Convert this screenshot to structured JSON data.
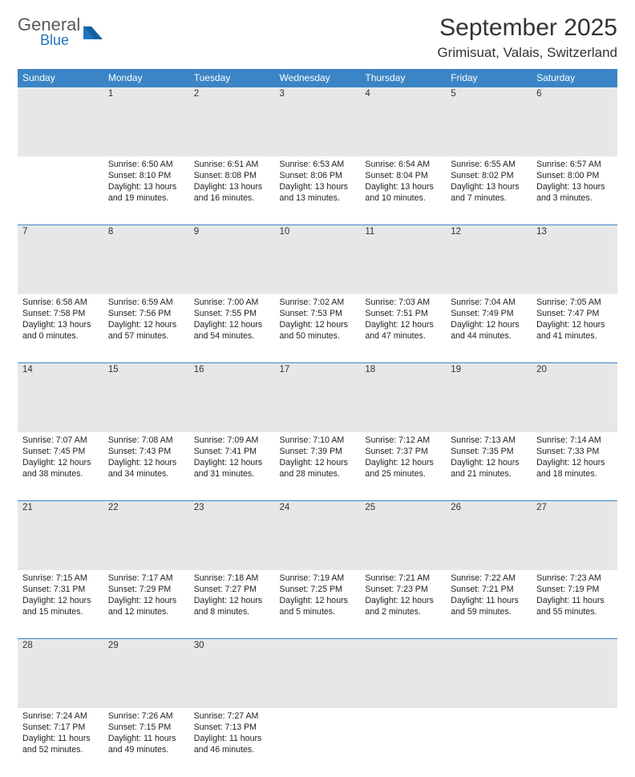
{
  "brand": {
    "general": "General",
    "blue": "Blue"
  },
  "title": "September 2025",
  "location": "Grimisuat, Valais, Switzerland",
  "colors": {
    "header_bg": "#3b85c6",
    "header_fg": "#ffffff",
    "daynum_bg": "#e7e7e7",
    "rule": "#3b85c6",
    "text": "#222222",
    "logo_gray": "#5a5a5a",
    "logo_blue": "#2176c1"
  },
  "weekdays": [
    "Sunday",
    "Monday",
    "Tuesday",
    "Wednesday",
    "Thursday",
    "Friday",
    "Saturday"
  ],
  "weeks": [
    [
      null,
      {
        "n": "1",
        "sr": "6:50 AM",
        "ss": "8:10 PM",
        "dl": "13 hours and 19 minutes."
      },
      {
        "n": "2",
        "sr": "6:51 AM",
        "ss": "8:08 PM",
        "dl": "13 hours and 16 minutes."
      },
      {
        "n": "3",
        "sr": "6:53 AM",
        "ss": "8:06 PM",
        "dl": "13 hours and 13 minutes."
      },
      {
        "n": "4",
        "sr": "6:54 AM",
        "ss": "8:04 PM",
        "dl": "13 hours and 10 minutes."
      },
      {
        "n": "5",
        "sr": "6:55 AM",
        "ss": "8:02 PM",
        "dl": "13 hours and 7 minutes."
      },
      {
        "n": "6",
        "sr": "6:57 AM",
        "ss": "8:00 PM",
        "dl": "13 hours and 3 minutes."
      }
    ],
    [
      {
        "n": "7",
        "sr": "6:58 AM",
        "ss": "7:58 PM",
        "dl": "13 hours and 0 minutes."
      },
      {
        "n": "8",
        "sr": "6:59 AM",
        "ss": "7:56 PM",
        "dl": "12 hours and 57 minutes."
      },
      {
        "n": "9",
        "sr": "7:00 AM",
        "ss": "7:55 PM",
        "dl": "12 hours and 54 minutes."
      },
      {
        "n": "10",
        "sr": "7:02 AM",
        "ss": "7:53 PM",
        "dl": "12 hours and 50 minutes."
      },
      {
        "n": "11",
        "sr": "7:03 AM",
        "ss": "7:51 PM",
        "dl": "12 hours and 47 minutes."
      },
      {
        "n": "12",
        "sr": "7:04 AM",
        "ss": "7:49 PM",
        "dl": "12 hours and 44 minutes."
      },
      {
        "n": "13",
        "sr": "7:05 AM",
        "ss": "7:47 PM",
        "dl": "12 hours and 41 minutes."
      }
    ],
    [
      {
        "n": "14",
        "sr": "7:07 AM",
        "ss": "7:45 PM",
        "dl": "12 hours and 38 minutes."
      },
      {
        "n": "15",
        "sr": "7:08 AM",
        "ss": "7:43 PM",
        "dl": "12 hours and 34 minutes."
      },
      {
        "n": "16",
        "sr": "7:09 AM",
        "ss": "7:41 PM",
        "dl": "12 hours and 31 minutes."
      },
      {
        "n": "17",
        "sr": "7:10 AM",
        "ss": "7:39 PM",
        "dl": "12 hours and 28 minutes."
      },
      {
        "n": "18",
        "sr": "7:12 AM",
        "ss": "7:37 PM",
        "dl": "12 hours and 25 minutes."
      },
      {
        "n": "19",
        "sr": "7:13 AM",
        "ss": "7:35 PM",
        "dl": "12 hours and 21 minutes."
      },
      {
        "n": "20",
        "sr": "7:14 AM",
        "ss": "7:33 PM",
        "dl": "12 hours and 18 minutes."
      }
    ],
    [
      {
        "n": "21",
        "sr": "7:15 AM",
        "ss": "7:31 PM",
        "dl": "12 hours and 15 minutes."
      },
      {
        "n": "22",
        "sr": "7:17 AM",
        "ss": "7:29 PM",
        "dl": "12 hours and 12 minutes."
      },
      {
        "n": "23",
        "sr": "7:18 AM",
        "ss": "7:27 PM",
        "dl": "12 hours and 8 minutes."
      },
      {
        "n": "24",
        "sr": "7:19 AM",
        "ss": "7:25 PM",
        "dl": "12 hours and 5 minutes."
      },
      {
        "n": "25",
        "sr": "7:21 AM",
        "ss": "7:23 PM",
        "dl": "12 hours and 2 minutes."
      },
      {
        "n": "26",
        "sr": "7:22 AM",
        "ss": "7:21 PM",
        "dl": "11 hours and 59 minutes."
      },
      {
        "n": "27",
        "sr": "7:23 AM",
        "ss": "7:19 PM",
        "dl": "11 hours and 55 minutes."
      }
    ],
    [
      {
        "n": "28",
        "sr": "7:24 AM",
        "ss": "7:17 PM",
        "dl": "11 hours and 52 minutes."
      },
      {
        "n": "29",
        "sr": "7:26 AM",
        "ss": "7:15 PM",
        "dl": "11 hours and 49 minutes."
      },
      {
        "n": "30",
        "sr": "7:27 AM",
        "ss": "7:13 PM",
        "dl": "11 hours and 46 minutes."
      },
      null,
      null,
      null,
      null
    ]
  ],
  "labels": {
    "sunrise": "Sunrise:",
    "sunset": "Sunset:",
    "daylight": "Daylight:"
  }
}
